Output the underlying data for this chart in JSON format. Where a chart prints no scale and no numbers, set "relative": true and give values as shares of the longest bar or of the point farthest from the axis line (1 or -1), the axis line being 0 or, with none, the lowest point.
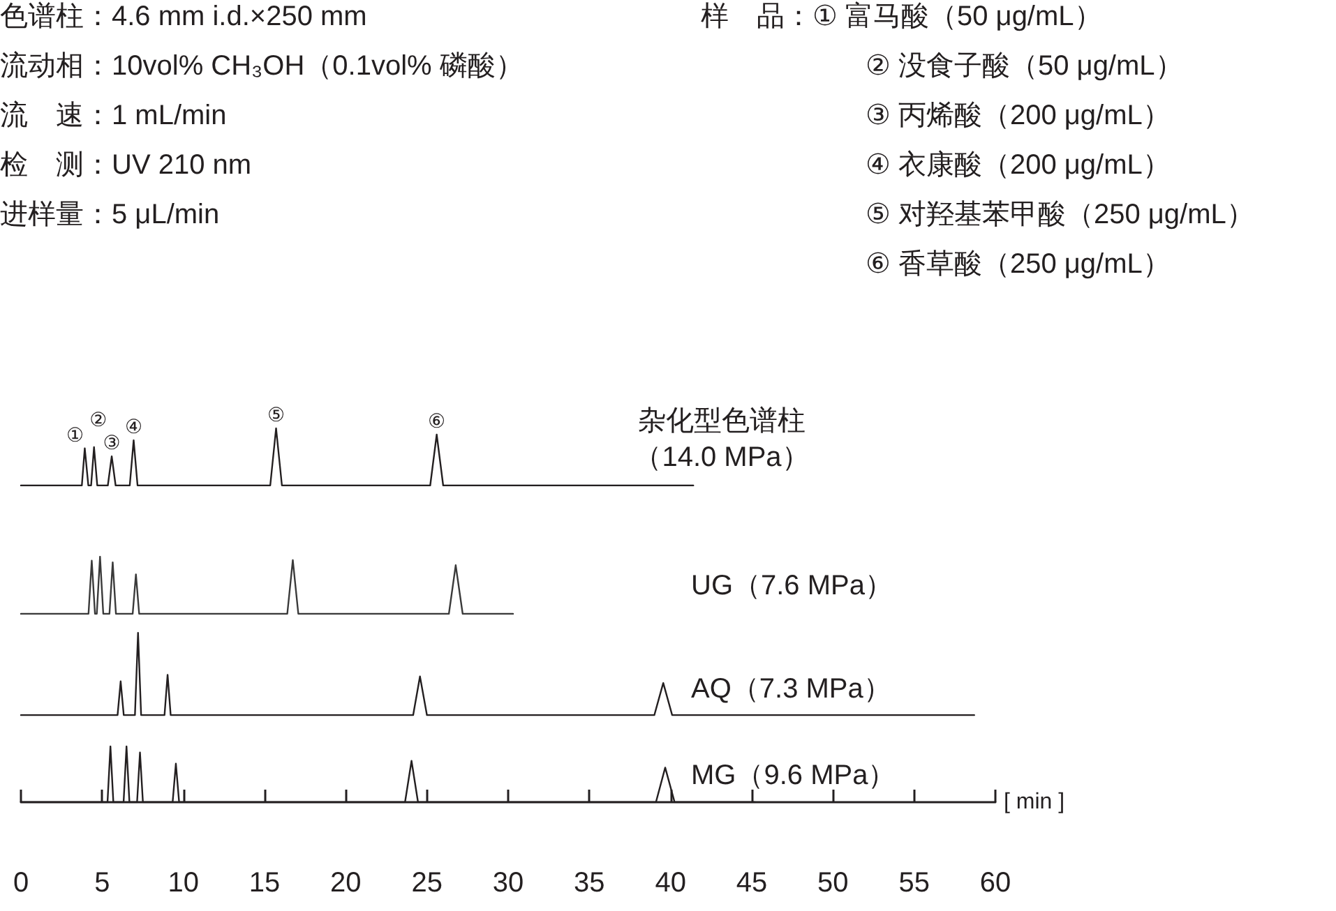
{
  "chart_data": [
    {
      "type": "other",
      "annotations": [
        "色谱柱：4.6 mm i.d.×250 mm",
        "流动相：10vol% CH₃OH（0.1vol% 磷酸）",
        "流　速：1 mL/min",
        "检　测：UV 210 nm",
        "进样量：5 μL/min",
        "样　品：① 富马酸（50 μg/mL）",
        "② 没食子酸（50 μg/mL）",
        "③ 丙烯酸（200 μg/mL）",
        "④ 衣康酸（200 μg/mL）",
        "⑤ 对羟基苯甲酸（250 μg/mL）",
        "⑥ 香草酸（250 μg/mL）"
      ]
    },
    {
      "type": "line",
      "relative": true,
      "xlim": [
        0,
        60
      ],
      "tick_labels": false,
      "grid": false,
      "marker": "none",
      "line_style": "solid",
      "series": [
        {
          "name": "杂化型色谱柱（14.0 MPa）",
          "color": "#231f20",
          "x": [
            0,
            3.75,
            3.93,
            4.15,
            4.32,
            4.5,
            4.7,
            5.35,
            5.59,
            5.83,
            6.7,
            6.94,
            7.18,
            15.35,
            15.71,
            16.07,
            25.2,
            25.6,
            26.0,
            41.4
          ],
          "values": [
            0,
            0,
            0.65,
            0,
            0,
            0.67,
            0,
            0,
            0.51,
            0,
            0,
            0.79,
            0,
            0,
            1,
            0,
            0,
            0.89,
            0,
            0
          ]
        }
      ],
      "annotations": [
        {
          "text": "①",
          "x": 3.93,
          "y": 0.65
        },
        {
          "text": "②",
          "x": 4.5,
          "y": 0.67
        },
        {
          "text": "③",
          "x": 5.59,
          "y": 0.51
        },
        {
          "text": "④",
          "x": 6.94,
          "y": 0.79
        },
        {
          "text": "⑤",
          "x": 15.71,
          "y": 1
        },
        {
          "text": "⑥",
          "x": 25.6,
          "y": 0.89
        }
      ]
    },
    {
      "type": "line",
      "relative": true,
      "xlim": [
        0,
        60
      ],
      "tick_labels": false,
      "grid": false,
      "marker": "none",
      "line_style": "solid",
      "series": [
        {
          "name": "UG（7.6 MPa）",
          "color": "#3a3a3a",
          "x": [
            0,
            4.16,
            4.36,
            4.56,
            4.67,
            4.87,
            5.07,
            5.45,
            5.65,
            5.85,
            6.88,
            7.08,
            7.28,
            16.4,
            16.74,
            17.08,
            26.35,
            26.77,
            27.2,
            30.3
          ],
          "values": [
            0,
            0,
            0.93,
            0,
            0,
            1,
            0,
            0,
            0.9,
            0,
            0,
            0.69,
            0,
            0,
            0.94,
            0,
            0,
            0.85,
            0,
            0
          ]
        }
      ]
    },
    {
      "type": "line",
      "relative": true,
      "xlim": [
        0,
        60
      ],
      "tick_labels": false,
      "grid": false,
      "marker": "none",
      "line_style": "solid",
      "series": [
        {
          "name": "AQ（7.3 MPa）",
          "color": "#231f20",
          "x": [
            0,
            5.95,
            6.14,
            6.33,
            7.02,
            7.21,
            7.4,
            8.84,
            9.03,
            9.22,
            24.15,
            24.57,
            25.0,
            39.0,
            39.55,
            40.1,
            58.7
          ],
          "values": [
            0,
            0,
            0.41,
            0,
            0,
            1,
            0,
            0,
            0.49,
            0,
            0,
            0.47,
            0,
            0,
            0.39,
            0,
            0
          ]
        }
      ]
    },
    {
      "type": "line",
      "relative": true,
      "xlim": [
        0,
        60
      ],
      "xticks": [
        0,
        5,
        10,
        15,
        20,
        25,
        30,
        35,
        40,
        45,
        50,
        55,
        60
      ],
      "xlabel": "[ min ]",
      "tick_labels": "x",
      "grid": false,
      "marker": "none",
      "line_style": "solid",
      "series": [
        {
          "name": "MG（9.6 MPa）",
          "color": "#231f20",
          "x": [
            0,
            5.33,
            5.51,
            5.69,
            6.32,
            6.5,
            6.68,
            7.15,
            7.33,
            7.51,
            9.34,
            9.54,
            9.74,
            23.65,
            24.05,
            24.45,
            39.1,
            39.67,
            40.25,
            45.2
          ],
          "values": [
            0,
            0,
            1,
            0,
            0,
            1,
            0,
            0,
            0.89,
            0,
            0,
            0.69,
            0,
            0,
            0.74,
            0,
            0,
            0.62,
            0,
            0
          ]
        }
      ]
    }
  ]
}
